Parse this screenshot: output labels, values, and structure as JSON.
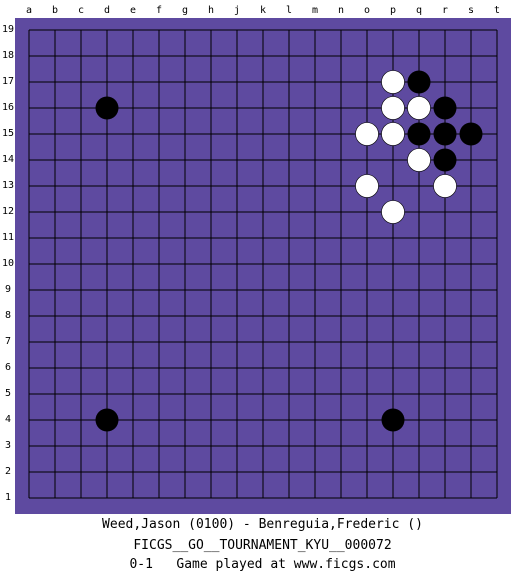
{
  "board": {
    "size": 19,
    "columns": [
      "a",
      "b",
      "c",
      "d",
      "e",
      "f",
      "g",
      "h",
      "j",
      "k",
      "l",
      "m",
      "n",
      "o",
      "p",
      "q",
      "r",
      "s",
      "t"
    ],
    "rows": [
      19,
      18,
      17,
      16,
      15,
      14,
      13,
      12,
      11,
      10,
      9,
      8,
      7,
      6,
      5,
      4,
      3,
      2,
      1
    ],
    "colors": {
      "background": "#5e4aa0",
      "grid": "#000000",
      "black_stone": "#000000",
      "white_stone": "#ffffff"
    },
    "stones": {
      "black": [
        "q17",
        "r16",
        "q15",
        "r15",
        "s15",
        "r14",
        "d16",
        "d4",
        "p4"
      ],
      "white": [
        "p17",
        "p16",
        "q16",
        "o15",
        "p15",
        "q14",
        "o13",
        "r13",
        "p12"
      ]
    }
  },
  "footer": {
    "players": "Weed,Jason (0100) - Benreguia,Frederic ()",
    "event": "FICGS__GO__TOURNAMENT_KYU__000072",
    "result_line": "0-1   Game played at www.ficgs.com"
  }
}
